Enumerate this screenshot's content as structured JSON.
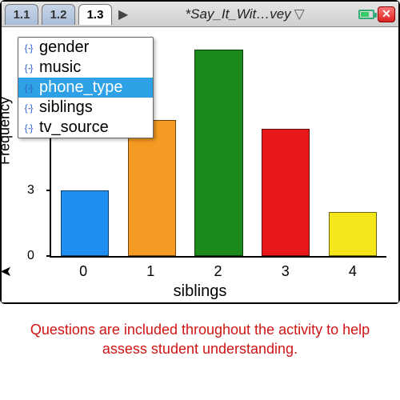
{
  "tabs": [
    {
      "label": "1.1",
      "active": false
    },
    {
      "label": "1.2",
      "active": false
    },
    {
      "label": "1.3",
      "active": true
    }
  ],
  "document_title": "*Say_It_Wit…vey",
  "dropdown": {
    "options": [
      "gender",
      "music",
      "phone_type",
      "siblings",
      "tv_source"
    ],
    "selected_index": 2
  },
  "chart": {
    "type": "bar",
    "x_title": "siblings",
    "y_title": "Frequency",
    "categories": [
      "0",
      "1",
      "2",
      "3",
      "4"
    ],
    "values": [
      3,
      6.2,
      9.4,
      5.8,
      2
    ],
    "bar_colors": [
      "#1f8ef0",
      "#f59a22",
      "#1b8a1b",
      "#e81818",
      "#f4e618"
    ],
    "y_tick_values": [
      0,
      3
    ],
    "y_max": 10,
    "background": "#ffffff",
    "axis_color": "#000000"
  },
  "caption": "Questions are included throughout the activity to help assess student understanding."
}
